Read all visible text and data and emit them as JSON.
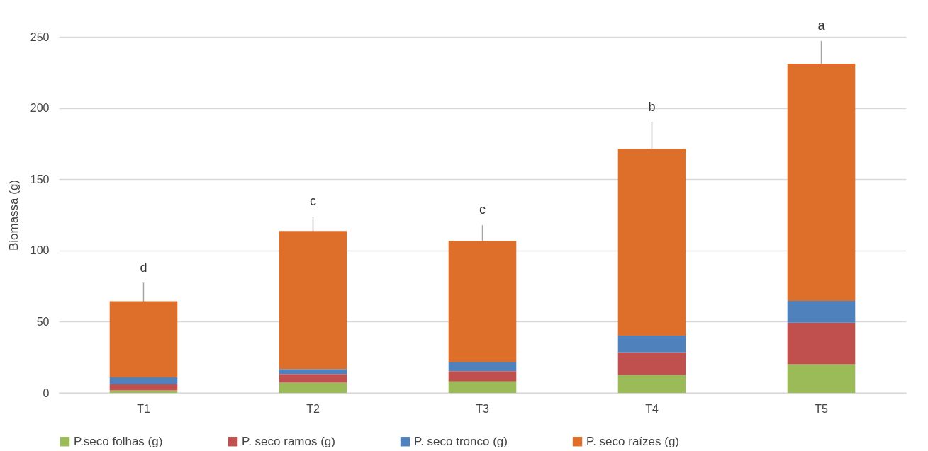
{
  "chart_data": {
    "type": "bar",
    "stacked": true,
    "ylabel": "Biomassa (g)",
    "categories": [
      "T1",
      "T2",
      "T3",
      "T4",
      "T5"
    ],
    "series": [
      {
        "name": "P.seco folhas (g)",
        "color": "#9bbb59",
        "values": [
          1.7,
          7.2,
          8.1,
          12.7,
          20.1
        ]
      },
      {
        "name": "P. seco ramos (g)",
        "color": "#c0504d",
        "values": [
          4.4,
          6.1,
          7.2,
          15.8,
          29.2
        ]
      },
      {
        "name": "P. seco tronco (g)",
        "color": "#4f81bd",
        "values": [
          4.9,
          3.5,
          6.3,
          11.7,
          15.3
        ]
      },
      {
        "name": "P. seco raízes (g)",
        "color": "#de6f2a",
        "values": [
          53.4,
          96.9,
          85.1,
          131.2,
          166.5
        ],
        "errors": [
          13,
          10,
          11,
          19,
          16
        ]
      }
    ],
    "ylim": [
      0,
      250
    ],
    "yticks": [
      0,
      50,
      100,
      150,
      200,
      250
    ],
    "grid": "y",
    "legend": "bottom",
    "annotations": [
      {
        "text": "d",
        "x": "T1",
        "y": 77
      },
      {
        "text": "c",
        "x": "T2",
        "y": 124
      },
      {
        "text": "c",
        "x": "T3",
        "y": 118
      },
      {
        "text": "b",
        "x": "T4",
        "y": 190
      },
      {
        "text": "a",
        "x": "T5",
        "y": 247
      }
    ]
  }
}
